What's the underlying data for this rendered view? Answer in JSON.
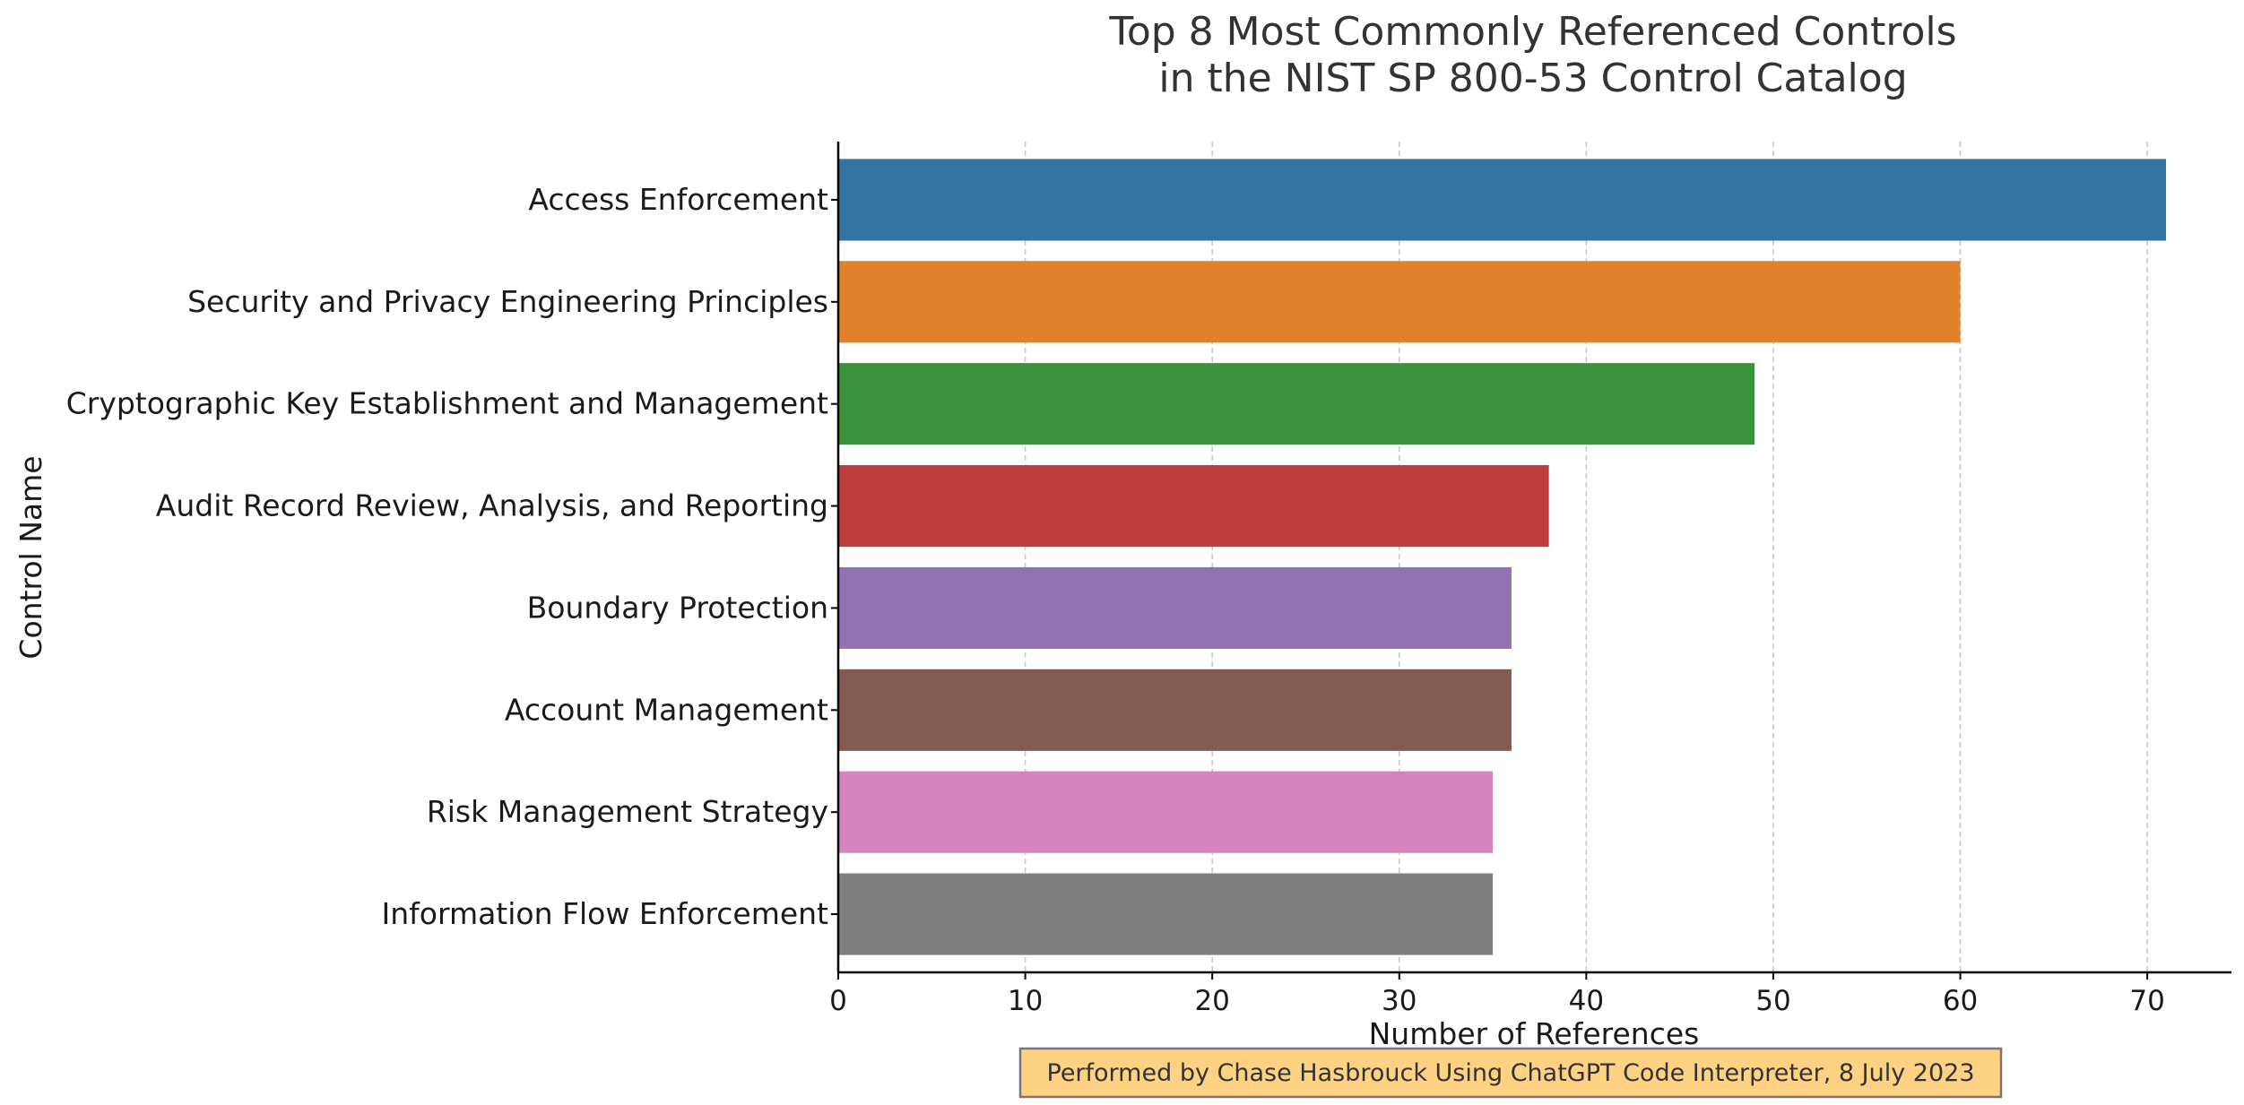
{
  "chart_data": {
    "type": "bar",
    "orientation": "horizontal",
    "title_line1": "Top 8 Most Commonly Referenced Controls",
    "title_line2": "in the NIST SP 800-53 Control Catalog",
    "xlabel": "Number of References",
    "ylabel": "Control Name",
    "categories": [
      "Access Enforcement",
      "Security and Privacy Engineering Principles",
      "Cryptographic Key Establishment and Management",
      "Audit Record Review, Analysis, and Reporting",
      "Boundary Protection",
      "Account Management",
      "Risk Management Strategy",
      "Information Flow Enforcement"
    ],
    "values": [
      71,
      60,
      49,
      38,
      36,
      36,
      35,
      35
    ],
    "colors": [
      "#3274a1",
      "#e1812c",
      "#3a923a",
      "#c03d3e",
      "#9372b2",
      "#845b53",
      "#d684bd",
      "#7f7f7f"
    ],
    "xlim": [
      0,
      74.5
    ],
    "xticks": [
      0,
      10,
      20,
      30,
      40,
      50,
      60,
      70
    ],
    "grid": "x-dashed",
    "footnote": "Performed by Chase Hasbrouck Using ChatGPT Code Interpreter, 8 July 2023"
  }
}
